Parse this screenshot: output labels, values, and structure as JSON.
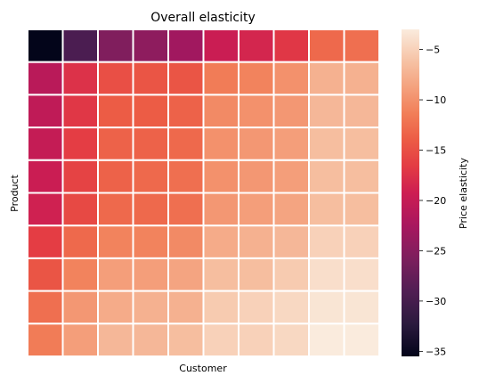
{
  "chart_data": {
    "type": "heatmap",
    "title": "Overall elasticity",
    "xlabel": "Customer",
    "ylabel": "Product",
    "colorbar": {
      "label": "Price elasticity",
      "vmin": -35.5,
      "vmax": -3,
      "ticks": [
        -5,
        -10,
        -15,
        -20,
        -25,
        -30,
        -35
      ],
      "tick_labels": [
        "−5",
        "−10",
        "−15",
        "−20",
        "−25",
        "−30",
        "−35"
      ]
    },
    "colormap": "rocket",
    "rows": 10,
    "cols": 10,
    "values": [
      [
        -35.5,
        -29.5,
        -25.5,
        -24.5,
        -23.0,
        -19.5,
        -18.5,
        -17.0,
        -13.0,
        -12.5
      ],
      [
        -21.0,
        -17.5,
        -15.0,
        -14.5,
        -14.5,
        -11.5,
        -11.0,
        -10.0,
        -7.5,
        -7.5
      ],
      [
        -20.5,
        -17.0,
        -14.0,
        -14.0,
        -13.5,
        -10.5,
        -10.0,
        -9.5,
        -7.0,
        -7.0
      ],
      [
        -20.0,
        -16.5,
        -13.5,
        -13.5,
        -13.0,
        -10.0,
        -9.5,
        -9.0,
        -6.5,
        -6.5
      ],
      [
        -19.5,
        -16.0,
        -13.5,
        -13.0,
        -12.5,
        -10.0,
        -9.5,
        -9.0,
        -6.5,
        -6.5
      ],
      [
        -19.0,
        -15.5,
        -13.0,
        -13.0,
        -12.5,
        -9.5,
        -9.0,
        -8.5,
        -6.5,
        -6.5
      ],
      [
        -16.5,
        -13.0,
        -11.0,
        -11.0,
        -10.5,
        -8.0,
        -7.5,
        -7.0,
        -5.0,
        -5.0
      ],
      [
        -14.5,
        -11.0,
        -9.0,
        -9.0,
        -8.5,
        -6.5,
        -6.5,
        -5.5,
        -4.0,
        -4.0
      ],
      [
        -12.5,
        -9.5,
        -8.0,
        -7.5,
        -7.5,
        -5.5,
        -5.0,
        -4.5,
        -3.5,
        -3.5
      ],
      [
        -11.5,
        -9.0,
        -7.0,
        -7.0,
        -6.5,
        -5.0,
        -5.0,
        -4.5,
        -3.0,
        -3.0
      ]
    ],
    "grid": false
  }
}
